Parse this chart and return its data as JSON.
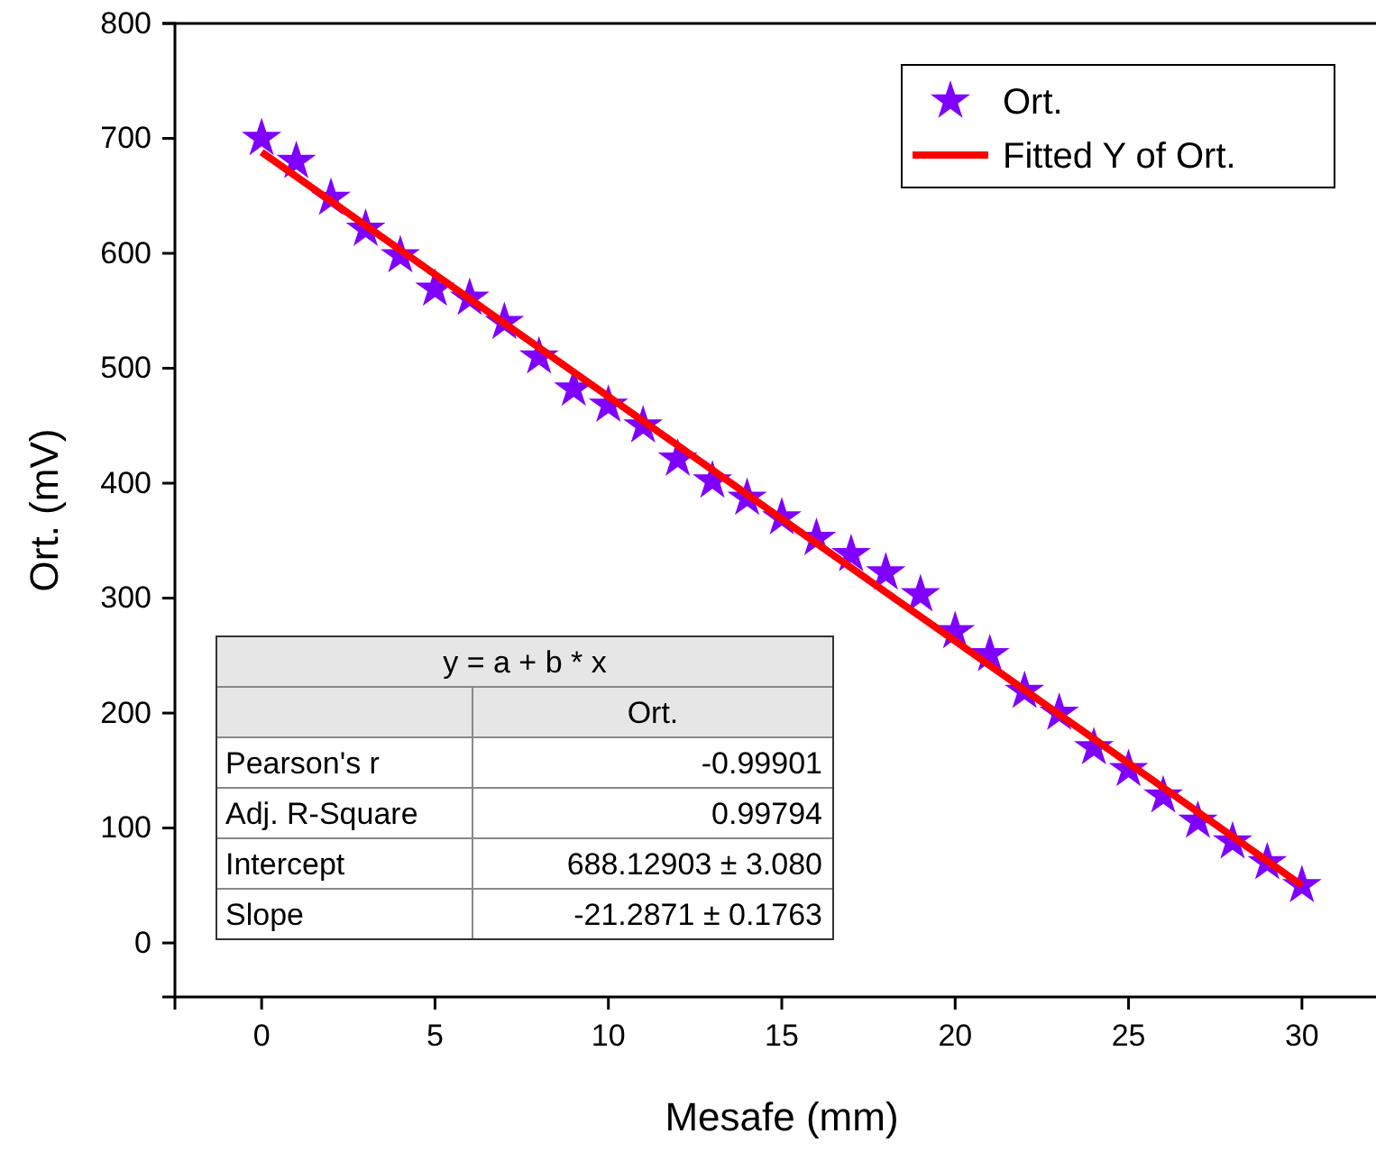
{
  "chart_data": {
    "type": "scatter",
    "xlabel": "Mesafe (mm)",
    "ylabel": "Ort. (mV)",
    "xlim": [
      -2.5,
      32.5
    ],
    "ylim": [
      -47,
      800
    ],
    "xticks": [
      0,
      5,
      10,
      15,
      20,
      25,
      30
    ],
    "yticks": [
      0,
      100,
      200,
      300,
      400,
      500,
      600,
      700,
      800
    ],
    "grid": false,
    "legend": "top right",
    "series": [
      {
        "name": "Ort.",
        "marker": "star",
        "color": "#7f00ff",
        "x": [
          0,
          1,
          2,
          3,
          4,
          5,
          6,
          7,
          8,
          9,
          10,
          11,
          12,
          13,
          14,
          15,
          16,
          17,
          18,
          19,
          20,
          21,
          22,
          23,
          24,
          25,
          26,
          27,
          28,
          29,
          30
        ],
        "values": [
          700,
          680,
          648,
          621,
          598,
          569,
          561,
          540,
          510,
          482,
          468,
          450,
          421,
          402,
          387,
          370,
          352,
          338,
          322,
          303,
          271,
          251,
          219,
          200,
          170,
          151,
          128,
          106,
          88,
          70,
          50
        ]
      },
      {
        "name": "Fitted Y of Ort.",
        "type": "line",
        "line_style": "solid",
        "color": "#ff0000",
        "x": [
          0,
          30
        ],
        "values": [
          688,
          50
        ]
      }
    ],
    "annotations": [
      "y = a + b * x",
      "Ort.",
      "Pearson's r",
      "-0.99901",
      "Adj. R-Square",
      "0.99794",
      "Intercept",
      "688.12903 ± 3.080",
      "Slope",
      "-21.2871 ± 0.1763"
    ]
  }
}
